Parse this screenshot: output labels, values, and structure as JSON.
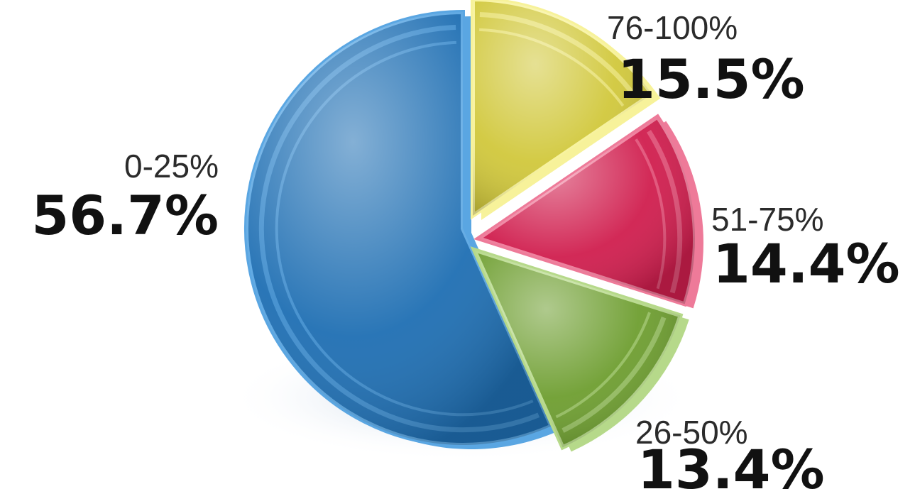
{
  "chart_data": {
    "type": "pie",
    "title": "",
    "slices": [
      {
        "label": "0-25%",
        "value_label": "56.7%",
        "value": 56.7,
        "color": "#1f6fb3",
        "light": "#5aa6e2"
      },
      {
        "label": "76-100%",
        "value_label": "15.5%",
        "value": 15.5,
        "color": "#d1c83c",
        "light": "#f7f29a"
      },
      {
        "label": "51-75%",
        "value_label": "14.4%",
        "value": 14.4,
        "color": "#d01e4e",
        "light": "#ee7a99"
      },
      {
        "label": "26-50%",
        "value_label": "13.4%",
        "value": 13.4,
        "color": "#6e9e30",
        "light": "#b6d98a"
      }
    ]
  }
}
